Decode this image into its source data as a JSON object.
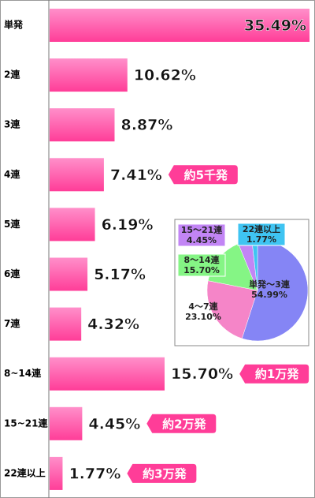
{
  "chart_data": [
    {
      "type": "hbar",
      "categories": [
        "単発",
        "2連",
        "3連",
        "4連",
        "5連",
        "6連",
        "7連",
        "8~14連",
        "15~21連",
        "22連以上"
      ],
      "values": [
        35.49,
        10.62,
        8.87,
        7.41,
        6.19,
        5.17,
        4.32,
        15.7,
        4.45,
        1.77
      ],
      "value_labels": [
        "35.49%",
        "10.62%",
        "8.87%",
        "7.41%",
        "6.19%",
        "5.17%",
        "4.32%",
        "15.70%",
        "4.45%",
        "1.77%"
      ],
      "annotations": [
        null,
        null,
        null,
        "約5千発",
        null,
        null,
        null,
        "約1万発",
        "約2万発",
        "約3万発"
      ],
      "color": "#ff4fa3"
    },
    {
      "type": "pie",
      "categories": [
        "単発～3連",
        "4～7連",
        "8～14連",
        "15～21連",
        "22連以上"
      ],
      "values": [
        54.99,
        23.1,
        15.7,
        4.45,
        1.77
      ],
      "value_labels": [
        "54.99%",
        "23.10%",
        "15.70%",
        "4.45%",
        "1.77%"
      ],
      "colors": [
        "#8585f5",
        "#f585c8",
        "#85f585",
        "#c285f5",
        "#3fc4f2"
      ]
    }
  ]
}
